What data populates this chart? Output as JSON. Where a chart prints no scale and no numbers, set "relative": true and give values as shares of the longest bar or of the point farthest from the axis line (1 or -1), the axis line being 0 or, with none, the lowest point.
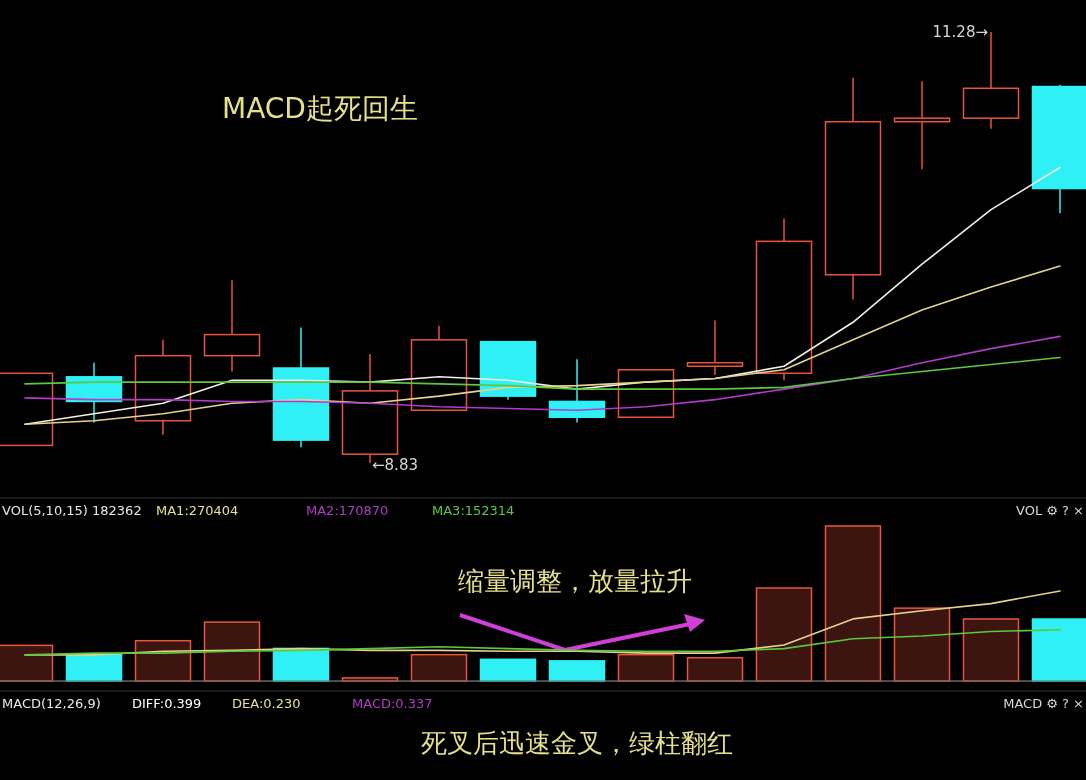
{
  "chart_data": [
    {
      "type": "candlestick",
      "title": "MACD起死回生",
      "categories": [
        null,
        null,
        null,
        null,
        null,
        null,
        null,
        null,
        null,
        null,
        null,
        null,
        null,
        null,
        null,
        null
      ],
      "ohlc": [
        [
          8.93,
          9.34,
          8.93,
          9.34
        ],
        [
          9.32,
          9.4,
          9.06,
          9.18
        ],
        [
          9.07,
          9.53,
          8.99,
          9.44
        ],
        [
          9.44,
          9.87,
          9.35,
          9.56
        ],
        [
          9.37,
          9.6,
          8.92,
          8.96
        ],
        [
          8.88,
          9.45,
          8.83,
          9.24
        ],
        [
          9.13,
          9.61,
          9.13,
          9.53
        ],
        [
          9.52,
          9.52,
          9.19,
          9.21
        ],
        [
          9.18,
          9.42,
          9.06,
          9.09
        ],
        [
          9.09,
          9.36,
          9.09,
          9.36
        ],
        [
          9.38,
          9.64,
          9.33,
          9.4
        ],
        [
          9.34,
          10.22,
          9.3,
          10.09
        ],
        [
          9.9,
          11.02,
          9.76,
          10.77
        ],
        [
          10.77,
          11.0,
          10.5,
          10.79
        ],
        [
          10.79,
          11.28,
          10.73,
          10.96
        ],
        [
          10.97,
          10.98,
          10.25,
          10.39
        ]
      ],
      "colors": [
        "#e8553e",
        "#2ff0f5",
        "#e8553e",
        "#e8553e",
        "#2ff0f5",
        "#e8553e",
        "#e8553e",
        "#2ff0f5",
        "#2ff0f5",
        "#e8553e",
        "#e8553e",
        "#e8553e",
        "#e8553e",
        "#e8553e",
        "#e8553e",
        "#2ff0f5"
      ],
      "series": [
        {
          "type": "line",
          "color": "#f0f0e6",
          "values": [
            9.05,
            9.11,
            9.17,
            9.3,
            9.3,
            9.29,
            9.32,
            9.3,
            9.25,
            9.29,
            9.31,
            9.38,
            9.63,
            9.96,
            10.27,
            10.51
          ]
        },
        {
          "type": "line",
          "color": "#e6d28c",
          "values": [
            9.05,
            9.07,
            9.11,
            9.17,
            9.19,
            9.17,
            9.21,
            9.26,
            9.27,
            9.29,
            9.31,
            9.36,
            9.53,
            9.7,
            9.83,
            9.95
          ]
        },
        {
          "type": "line",
          "color": "#b03cc8",
          "values": [
            9.2,
            9.19,
            9.19,
            9.18,
            9.18,
            9.17,
            9.15,
            9.14,
            9.13,
            9.15,
            9.19,
            9.25,
            9.31,
            9.4,
            9.48,
            9.55
          ]
        },
        {
          "type": "line",
          "color": "#5cc83c",
          "values": [
            9.28,
            9.29,
            9.29,
            9.29,
            9.29,
            9.29,
            9.28,
            9.27,
            9.25,
            9.25,
            9.25,
            9.26,
            9.31,
            9.35,
            9.39,
            9.43
          ]
        }
      ],
      "annotations": [
        "11.28→",
        "←8.83"
      ]
    },
    {
      "type": "bar",
      "relative": true,
      "categories": [
        null,
        null,
        null,
        null,
        null,
        null,
        null,
        null,
        null,
        null,
        null,
        null,
        null,
        null,
        null,
        null
      ],
      "series": [
        {
          "type": "bar",
          "colors": [
            "#e8553e",
            "#2ff0f5",
            "#e8553e",
            "#e8553e",
            "#2ff0f5",
            "#e8553e",
            "#e8553e",
            "#2ff0f5",
            "#2ff0f5",
            "#e8553e",
            "#e8553e",
            "#e8553e",
            "#e8553e",
            "#e8553e",
            "#e8553e",
            "#2ff0f5"
          ],
          "values": [
            0.23,
            0.17,
            0.26,
            0.38,
            0.21,
            0.02,
            0.17,
            0.14,
            0.13,
            0.17,
            0.15,
            0.6,
            1,
            0.47,
            0.4,
            0.4
          ]
        }
      ],
      "annotations": [
        "VOL(5,10,15) 182362",
        "MA1:270404",
        "MA2:170870",
        "MA3:152314",
        "缩量调整，放量拉升",
        "VOL ⚙ ? ×"
      ]
    },
    {
      "type": "line",
      "relative": true,
      "categories": [
        null,
        null,
        null,
        null,
        null,
        null,
        null,
        null,
        null,
        null,
        null,
        null,
        null,
        null,
        null,
        null
      ],
      "series": [
        {
          "color": "#e6d28c",
          "values": [
            0.29,
            0.29,
            0.33,
            0.34,
            0.36,
            0.34,
            0.34,
            0.33,
            0.33,
            0.31,
            0.31,
            0.4,
            0.69,
            0.78,
            0.86,
            1
          ]
        },
        {
          "color": "#5cc83c",
          "values": [
            0.29,
            0.31,
            0.31,
            0.33,
            0.34,
            0.36,
            0.38,
            0.36,
            0.34,
            0.33,
            0.33,
            0.36,
            0.47,
            0.5,
            0.55,
            0.57
          ]
        }
      ]
    },
    {
      "type": "other",
      "annotations": [
        "MACD(12,26,9)",
        "DIFF:0.399",
        "DEA:0.230",
        "MACD:0.337",
        "死叉后迅速金叉，绿柱翻红",
        "MACD ⚙ ? ×"
      ]
    }
  ]
}
